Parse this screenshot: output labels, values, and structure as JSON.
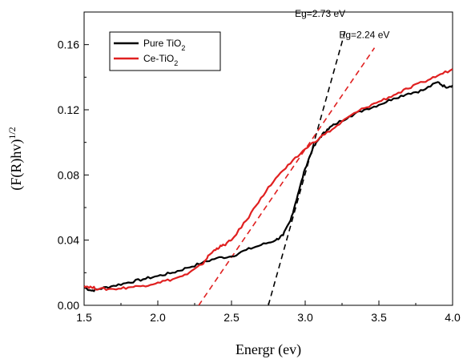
{
  "chart_data": {
    "type": "line",
    "xlabel": "Energr (ev)",
    "ylabel": "(F(R)hv)",
    "ylabel_superscript": "1/2",
    "xlim": [
      1.5,
      4.0
    ],
    "ylim": [
      0.0,
      0.18
    ],
    "xticks": [
      "1.5",
      "2.0",
      "2.5",
      "3.0",
      "3.5",
      "4.0"
    ],
    "yticks": [
      "0.00",
      "0.04",
      "0.08",
      "0.12",
      "0.16"
    ],
    "grid": false,
    "legend_position": "top-left",
    "series": [
      {
        "name": "Pure TiO",
        "name_subscript": "2",
        "color": "#000000",
        "x": [
          1.5,
          1.55,
          1.6,
          1.7,
          1.8,
          1.9,
          2.0,
          2.1,
          2.2,
          2.3,
          2.4,
          2.5,
          2.6,
          2.7,
          2.8,
          2.85,
          2.9,
          2.95,
          3.0,
          3.05,
          3.1,
          3.15,
          3.2,
          3.3,
          3.4,
          3.5,
          3.6,
          3.7,
          3.8,
          3.9,
          3.95,
          4.0
        ],
        "y": [
          0.011,
          0.009,
          0.01,
          0.012,
          0.014,
          0.016,
          0.018,
          0.02,
          0.023,
          0.026,
          0.029,
          0.03,
          0.034,
          0.037,
          0.04,
          0.043,
          0.052,
          0.068,
          0.084,
          0.096,
          0.103,
          0.108,
          0.111,
          0.116,
          0.12,
          0.123,
          0.127,
          0.13,
          0.132,
          0.137,
          0.134,
          0.135
        ]
      },
      {
        "name": "Ce-TiO",
        "name_subscript": "2",
        "color": "#e02020",
        "x": [
          1.5,
          1.55,
          1.6,
          1.7,
          1.8,
          1.9,
          2.0,
          2.1,
          2.2,
          2.3,
          2.35,
          2.4,
          2.45,
          2.5,
          2.6,
          2.7,
          2.8,
          2.9,
          3.0,
          3.1,
          3.2,
          3.3,
          3.4,
          3.5,
          3.6,
          3.7,
          3.8,
          3.9,
          4.0
        ],
        "y": [
          0.012,
          0.011,
          0.01,
          0.01,
          0.011,
          0.012,
          0.014,
          0.016,
          0.019,
          0.025,
          0.031,
          0.035,
          0.037,
          0.04,
          0.052,
          0.066,
          0.078,
          0.087,
          0.096,
          0.103,
          0.109,
          0.116,
          0.121,
          0.125,
          0.129,
          0.133,
          0.137,
          0.141,
          0.145
        ]
      }
    ],
    "fit_lines": [
      {
        "color": "#000000",
        "x": [
          2.75,
          3.27
        ],
        "y": [
          0.0,
          0.168
        ]
      },
      {
        "color": "#e02020",
        "x": [
          2.24,
          3.47
        ],
        "y": [
          -0.005,
          0.158
        ]
      }
    ],
    "annotations": [
      {
        "text": "Eg=2.73 eV",
        "x": 2.93,
        "y": 0.177
      },
      {
        "text": "Eg=2.24 eV",
        "x": 3.23,
        "y": 0.164
      }
    ]
  }
}
